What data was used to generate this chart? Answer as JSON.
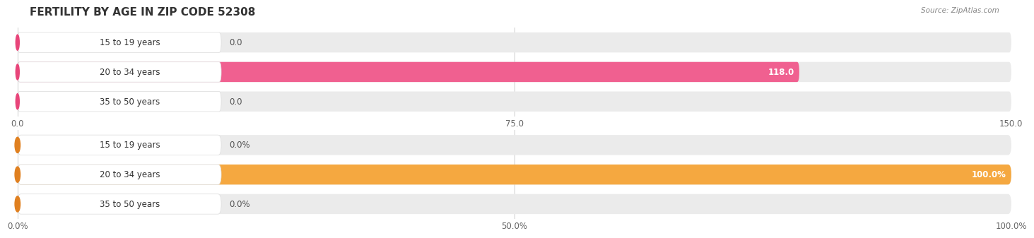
{
  "title": "FERTILITY BY AGE IN ZIP CODE 52308",
  "source": "Source: ZipAtlas.com",
  "top_chart": {
    "categories": [
      "15 to 19 years",
      "20 to 34 years",
      "35 to 50 years"
    ],
    "values": [
      0.0,
      118.0,
      0.0
    ],
    "xlim": [
      0,
      150
    ],
    "xticks": [
      0.0,
      75.0,
      150.0
    ],
    "bar_color": "#f06090",
    "bar_color_dark": "#e8457a",
    "bar_bg": "#ebebeb",
    "label_bg": "#ffffff"
  },
  "bottom_chart": {
    "categories": [
      "15 to 19 years",
      "20 to 34 years",
      "35 to 50 years"
    ],
    "values": [
      0.0,
      100.0,
      0.0
    ],
    "xlim": [
      0,
      100
    ],
    "xticks": [
      0.0,
      50.0,
      100.0
    ],
    "xtick_labels": [
      "0.0%",
      "50.0%",
      "100.0%"
    ],
    "bar_color": "#f5a840",
    "bar_color_dark": "#e08020",
    "bar_bg": "#ebebeb",
    "label_bg": "#ffffff"
  },
  "label_font_size": 8.5,
  "tick_font_size": 8.5,
  "title_font_size": 11,
  "bg_color": "#ffffff",
  "grid_color": "#cccccc",
  "text_color": "#555555",
  "white": "#ffffff"
}
